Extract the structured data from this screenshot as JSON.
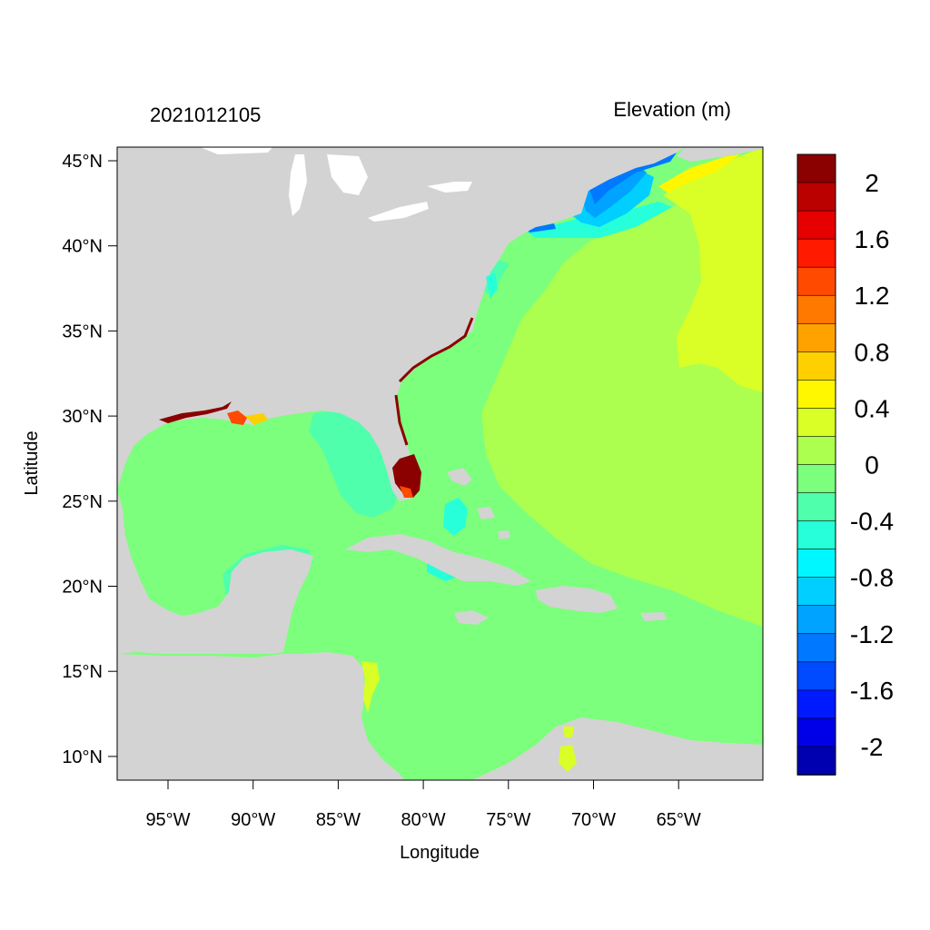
{
  "map": {
    "left_title": "2021012105",
    "right_title": "Elevation (m)",
    "xlabel": "Longitude",
    "ylabel": "Latitude",
    "x_ticks": [
      "95°W",
      "90°W",
      "85°W",
      "80°W",
      "75°W",
      "70°W",
      "65°W"
    ],
    "y_ticks": [
      "45°N",
      "40°N",
      "35°N",
      "30°N",
      "25°N",
      "20°N",
      "15°N",
      "10°N"
    ],
    "land_color": "#d3d3d3"
  },
  "colorbar": {
    "levels": [
      "2",
      "1.6",
      "1.2",
      "0.8",
      "0.4",
      "0",
      "-0.4",
      "-0.8",
      "-1.2",
      "-1.6",
      "-2"
    ],
    "colors": [
      "#8b0000",
      "#bb0000",
      "#e60000",
      "#ff1a00",
      "#ff4a00",
      "#ff7800",
      "#ffa200",
      "#ffd000",
      "#fff700",
      "#d9ff26",
      "#acff4f",
      "#7cff7c",
      "#4fffac",
      "#26ffd9",
      "#00f7ff",
      "#00cfff",
      "#00a3ff",
      "#0078ff",
      "#004aff",
      "#001aff",
      "#0000e6",
      "#0000b0"
    ]
  }
}
